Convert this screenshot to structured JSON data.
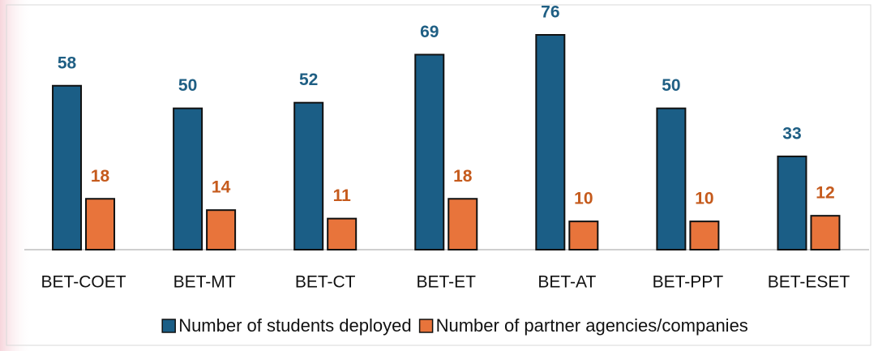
{
  "chart_data": {
    "type": "bar",
    "categories": [
      "BET-COET",
      "BET-MT",
      "BET-CT",
      "BET-ET",
      "BET-AT",
      "BET-PPT",
      "BET-ESET"
    ],
    "series": [
      {
        "name": "Number of students deployed",
        "color": "#1b5e86",
        "label_color": "#1f5f84",
        "values": [
          58,
          50,
          52,
          69,
          76,
          50,
          33
        ]
      },
      {
        "name": "Number of partner agencies/companies",
        "color": "#e8743b",
        "label_color": "#c55a1c",
        "values": [
          18,
          14,
          11,
          18,
          10,
          10,
          12
        ]
      }
    ]
  }
}
